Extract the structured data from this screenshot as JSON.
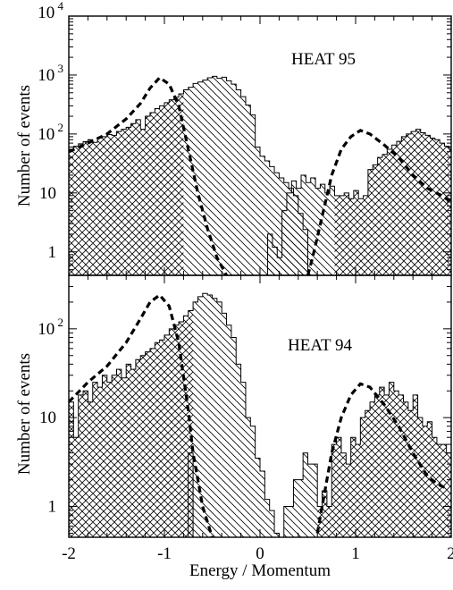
{
  "chart_data": {
    "type": "bar",
    "xlabel": "Energy / Momentum",
    "ylabel": "Number of events",
    "xlim": [
      -2,
      2
    ],
    "x_ticks": [
      "-2",
      "-1",
      "0",
      "1",
      "2"
    ],
    "grid": false,
    "legend": "none",
    "bin_width": 0.05,
    "fill_patterns": {
      "crosshatch": "events on the main (electron or proton) side of the cut",
      "diagonal": "events in the region between the dashed fit tails"
    },
    "panels": [
      {
        "label": "HEAT 95",
        "y_scale": "log",
        "ylim": [
          0.4,
          10000
        ],
        "y_tick_labels": [
          {
            "base": "10",
            "exp": "4",
            "value": 10000
          },
          {
            "base": "10",
            "exp": "3",
            "value": 1000
          },
          {
            "base": "10",
            "exp": "2",
            "value": 100
          },
          {
            "text": "10",
            "value": 10
          },
          {
            "text": "1",
            "value": 1
          }
        ],
        "series": [
          {
            "name": "negative peak histogram",
            "x_start": -2.0,
            "values": [
              55,
              62,
              68,
              74,
              80,
              72,
              85,
              90,
              98,
              95,
              110,
              120,
              130,
              150,
              175,
              120,
              200,
              230,
              270,
              300,
              340,
              380,
              420,
              480,
              560,
              620,
              720,
              760,
              820,
              900,
              950,
              880,
              920,
              800,
              700,
              560,
              430,
              310,
              210,
              60,
              42,
              35,
              28,
              22,
              18,
              15,
              12,
              9,
              4.5,
              2.4,
              0.3
            ],
            "crosshatch_until": -0.78
          },
          {
            "name": "positive peak histogram",
            "x_start": 0.08,
            "values": [
              2,
              1.2,
              0.8,
              5,
              10,
              16,
              12,
              20,
              15,
              18,
              12,
              14,
              10,
              13,
              9,
              9,
              10,
              8,
              11,
              8,
              9,
              25,
              30,
              40,
              45,
              55,
              65,
              75,
              90,
              100,
              110,
              120,
              105,
              95,
              85,
              80,
              70,
              62,
              55,
              48,
              40,
              35,
              30,
              26,
              22,
              18,
              14,
              13,
              11,
              10,
              9,
              8,
              9,
              7,
              8,
              6
            ],
            "crosshatch_from": 0.75
          },
          {
            "name": "dashed fit (negative)",
            "x": [
              -2.0,
              -1.8,
              -1.6,
              -1.4,
              -1.25,
              -1.15,
              -1.05,
              -0.95,
              -0.85,
              -0.75,
              -0.65,
              -0.55,
              -0.45,
              -0.35
            ],
            "y": [
              50,
              70,
              100,
              180,
              330,
              600,
              900,
              700,
              300,
              55,
              10,
              2.5,
              0.8,
              0.4
            ]
          },
          {
            "name": "dashed fit (positive)",
            "x": [
              0.5,
              0.55,
              0.65,
              0.75,
              0.85,
              0.95,
              1.05,
              1.15,
              1.3,
              1.45,
              1.6,
              1.75,
              1.9,
              2.0
            ],
            "y": [
              0.4,
              0.8,
              4,
              20,
              55,
              90,
              115,
              100,
              65,
              40,
              20,
              12,
              9,
              7
            ]
          }
        ]
      },
      {
        "label": "HEAT 94",
        "y_scale": "log",
        "ylim": [
          0.45,
          400
        ],
        "y_tick_labels": [
          {
            "base": "10",
            "exp": "2",
            "value": 100
          },
          {
            "text": "10",
            "value": 10
          },
          {
            "text": "1",
            "value": 1
          }
        ],
        "series": [
          {
            "name": "negative peak histogram",
            "x_start": -2.0,
            "values": [
              15,
              6,
              18,
              20,
              15,
              25,
              22,
              30,
              25,
              30,
              35,
              28,
              40,
              35,
              45,
              50,
              55,
              60,
              70,
              75,
              85,
              100,
              110,
              120,
              140,
              160,
              200,
              230,
              250,
              240,
              220,
              200,
              150,
              110,
              80,
              40,
              25,
              10,
              8,
              3.5,
              2.5,
              1.2,
              0.9,
              0.5
            ],
            "crosshatch_until": -0.7
          },
          {
            "name": "isolated bin",
            "x_start": -0.75,
            "values": [
              4
            ],
            "diagonal_only": true
          },
          {
            "name": "positive peak histogram",
            "x_start": 0.25,
            "values": [
              1,
              1,
              2,
              2,
              4,
              3,
              3,
              1,
              1.5,
              1,
              5,
              6,
              4,
              3,
              6,
              5,
              10,
              12,
              15,
              18,
              22,
              18,
              25,
              20,
              18,
              15,
              12,
              18,
              10,
              8,
              9,
              6,
              5,
              5,
              4,
              3,
              2,
              3,
              1,
              2
            ],
            "crosshatch_from": 0.6
          },
          {
            "name": "dashed fit (negative)",
            "x": [
              -2.0,
              -1.8,
              -1.6,
              -1.4,
              -1.25,
              -1.15,
              -1.05,
              -0.95,
              -0.85,
              -0.75,
              -0.7,
              -0.6,
              -0.5
            ],
            "y": [
              15,
              25,
              38,
              70,
              130,
              200,
              240,
              180,
              70,
              12,
              4,
              1,
              0.45
            ]
          },
          {
            "name": "dashed fit (positive)",
            "x": [
              0.6,
              0.65,
              0.75,
              0.85,
              0.95,
              1.05,
              1.15,
              1.3,
              1.45,
              1.6,
              1.75,
              1.85,
              1.95
            ],
            "y": [
              0.5,
              1,
              4,
              10,
              18,
              24,
              22,
              14,
              8,
              4,
              2.2,
              1.8,
              1.6
            ]
          }
        ]
      }
    ]
  }
}
